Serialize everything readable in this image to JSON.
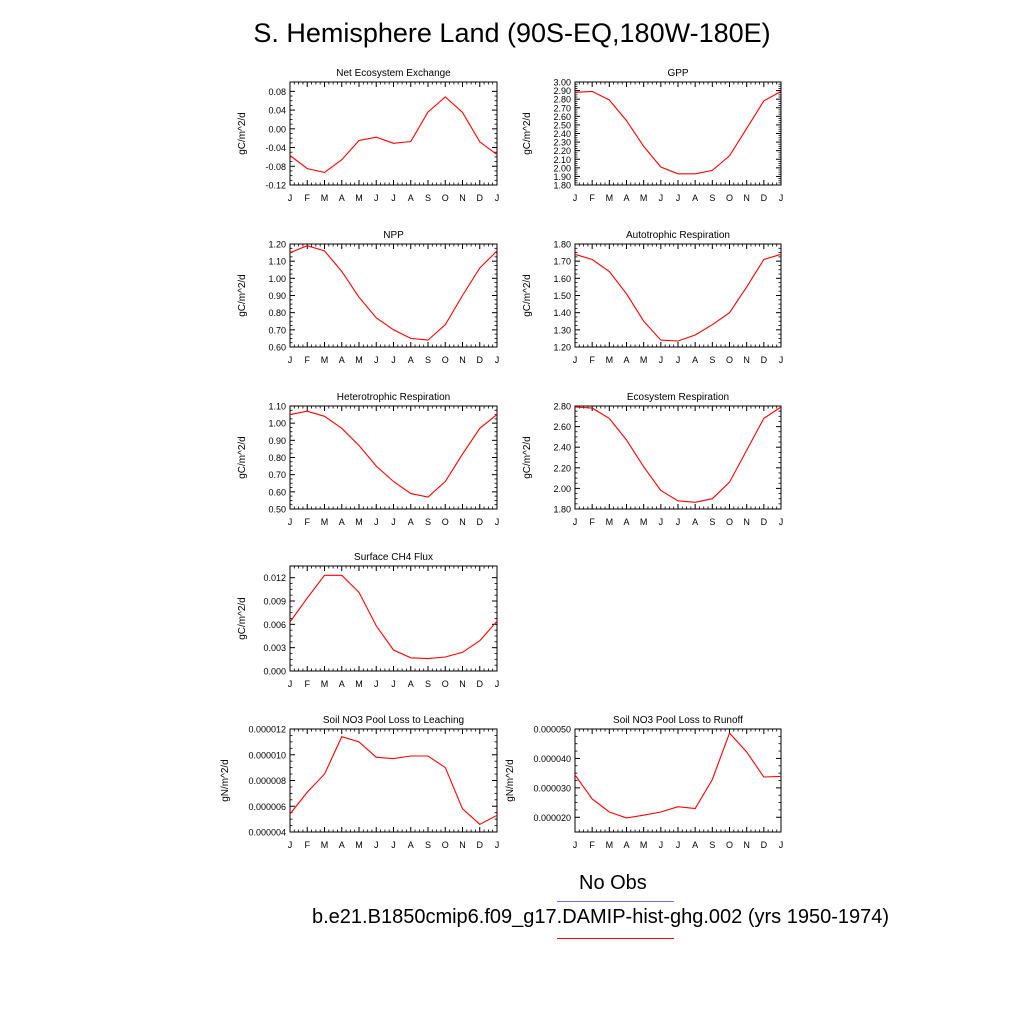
{
  "title": "S. Hemisphere Land (90S-EQ,180W-180E)",
  "legend": [
    {
      "label": "No Obs",
      "color": "#6f6ff7"
    },
    {
      "label": "b.e21.B1850cmip6.f09_g17.DAMIP-hist-ghg.002 (yrs 1950-1974)",
      "color": "#ff0000"
    }
  ],
  "chart_data": [
    {
      "type": "line",
      "title": "Net Ecosystem Exchange",
      "ylabel": "gC/m^2/d",
      "categories": [
        "J",
        "F",
        "M",
        "A",
        "M",
        "J",
        "J",
        "A",
        "S",
        "O",
        "N",
        "D",
        "J"
      ],
      "ylim": [
        -0.12,
        0.1
      ],
      "yticks": [
        "-0.12",
        "-0.08",
        "-0.04",
        "0.00",
        "0.04",
        "0.08"
      ],
      "yticks_values": [
        -0.12,
        -0.08,
        -0.04,
        0.0,
        0.04,
        0.08
      ],
      "series": [
        {
          "color": "#ff0000",
          "values": [
            -0.057,
            -0.085,
            -0.093,
            -0.066,
            -0.025,
            -0.018,
            -0.031,
            -0.027,
            0.036,
            0.068,
            0.035,
            -0.028,
            -0.055
          ]
        }
      ]
    },
    {
      "type": "line",
      "title": "GPP",
      "ylabel": "gC/m^2/d",
      "categories": [
        "J",
        "F",
        "M",
        "A",
        "M",
        "J",
        "J",
        "A",
        "S",
        "O",
        "N",
        "D",
        "J"
      ],
      "ylim": [
        1.8,
        3.0
      ],
      "yticks": [
        "1.80",
        "1.90",
        "2.00",
        "2.10",
        "2.20",
        "2.30",
        "2.40",
        "2.50",
        "2.60",
        "2.70",
        "2.80",
        "2.90",
        "3.00"
      ],
      "yticks_values": [
        1.8,
        1.9,
        2.0,
        2.1,
        2.2,
        2.3,
        2.4,
        2.5,
        2.6,
        2.7,
        2.8,
        2.9,
        3.0
      ],
      "series": [
        {
          "color": "#ff0000",
          "values": [
            2.88,
            2.89,
            2.79,
            2.55,
            2.25,
            2.01,
            1.93,
            1.93,
            1.97,
            2.14,
            2.46,
            2.78,
            2.89
          ]
        }
      ]
    },
    {
      "type": "line",
      "title": "NPP",
      "ylabel": "gC/m^2/d",
      "categories": [
        "J",
        "F",
        "M",
        "A",
        "M",
        "J",
        "J",
        "A",
        "S",
        "O",
        "N",
        "D",
        "J"
      ],
      "ylim": [
        0.6,
        1.2
      ],
      "yticks": [
        "0.60",
        "0.70",
        "0.80",
        "0.90",
        "1.00",
        "1.10",
        "1.20"
      ],
      "yticks_values": [
        0.6,
        0.7,
        0.8,
        0.9,
        1.0,
        1.1,
        1.2
      ],
      "series": [
        {
          "color": "#ff0000",
          "values": [
            1.15,
            1.19,
            1.16,
            1.04,
            0.89,
            0.77,
            0.7,
            0.65,
            0.64,
            0.73,
            0.9,
            1.06,
            1.16
          ]
        }
      ]
    },
    {
      "type": "line",
      "title": "Autotrophic Respiration",
      "ylabel": "gC/m^2/d",
      "categories": [
        "J",
        "F",
        "M",
        "A",
        "M",
        "J",
        "J",
        "A",
        "S",
        "O",
        "N",
        "D",
        "J"
      ],
      "ylim": [
        1.2,
        1.8
      ],
      "yticks": [
        "1.20",
        "1.30",
        "1.40",
        "1.50",
        "1.60",
        "1.70",
        "1.80"
      ],
      "yticks_values": [
        1.2,
        1.3,
        1.4,
        1.5,
        1.6,
        1.7,
        1.8
      ],
      "series": [
        {
          "color": "#ff0000",
          "values": [
            1.74,
            1.71,
            1.64,
            1.51,
            1.35,
            1.24,
            1.235,
            1.27,
            1.33,
            1.4,
            1.55,
            1.71,
            1.74
          ]
        }
      ]
    },
    {
      "type": "line",
      "title": "Heterotrophic Respiration",
      "ylabel": "gC/m^2/d",
      "categories": [
        "J",
        "F",
        "M",
        "A",
        "M",
        "J",
        "J",
        "A",
        "S",
        "O",
        "N",
        "D",
        "J"
      ],
      "ylim": [
        0.5,
        1.1
      ],
      "yticks": [
        "0.50",
        "0.60",
        "0.70",
        "0.80",
        "0.90",
        "1.00",
        "1.10"
      ],
      "yticks_values": [
        0.5,
        0.6,
        0.7,
        0.8,
        0.9,
        1.0,
        1.1
      ],
      "series": [
        {
          "color": "#ff0000",
          "values": [
            1.05,
            1.07,
            1.04,
            0.97,
            0.87,
            0.75,
            0.66,
            0.59,
            0.57,
            0.66,
            0.82,
            0.97,
            1.05
          ]
        }
      ]
    },
    {
      "type": "line",
      "title": "Ecosystem Respiration",
      "ylabel": "gC/m^2/d",
      "categories": [
        "J",
        "F",
        "M",
        "A",
        "M",
        "J",
        "J",
        "A",
        "S",
        "O",
        "N",
        "D",
        "J"
      ],
      "ylim": [
        1.8,
        2.8
      ],
      "yticks": [
        "1.80",
        "2.00",
        "2.20",
        "2.40",
        "2.60",
        "2.80"
      ],
      "yticks_values": [
        1.8,
        2.0,
        2.2,
        2.4,
        2.6,
        2.8
      ],
      "series": [
        {
          "color": "#ff0000",
          "values": [
            2.79,
            2.78,
            2.68,
            2.47,
            2.21,
            1.98,
            1.88,
            1.865,
            1.9,
            2.06,
            2.37,
            2.68,
            2.79
          ]
        }
      ]
    },
    {
      "type": "line",
      "title": "Surface CH4 Flux",
      "ylabel": "gC/m^2/d",
      "categories": [
        "J",
        "F",
        "M",
        "A",
        "M",
        "J",
        "J",
        "A",
        "S",
        "O",
        "N",
        "D",
        "J"
      ],
      "ylim": [
        0.0,
        0.0135
      ],
      "yticks": [
        "0.000",
        "0.003",
        "0.006",
        "0.009",
        "0.012"
      ],
      "yticks_values": [
        0.0,
        0.003,
        0.006,
        0.009,
        0.012
      ],
      "series": [
        {
          "color": "#ff0000",
          "values": [
            0.0063,
            0.0094,
            0.0123,
            0.0123,
            0.0101,
            0.0058,
            0.0027,
            0.0017,
            0.0016,
            0.0018,
            0.0024,
            0.0039,
            0.0064
          ]
        }
      ]
    },
    {
      "type": "line",
      "title": "Soil NO3 Pool Loss to Leaching",
      "ylabel": "gN/m^2/d",
      "categories": [
        "J",
        "F",
        "M",
        "A",
        "M",
        "J",
        "J",
        "A",
        "S",
        "O",
        "N",
        "D",
        "J"
      ],
      "ylim": [
        4e-06,
        1.2e-05
      ],
      "yticks": [
        "0.000004",
        "0.000006",
        "0.000008",
        "0.000010",
        "0.000012"
      ],
      "yticks_values": [
        4e-06,
        6e-06,
        8e-06,
        1e-05,
        1.2e-05
      ],
      "series": [
        {
          "color": "#ff0000",
          "values": [
            5.4e-06,
            7.1e-06,
            8.5e-06,
            1.14e-05,
            1.1e-05,
            9.8e-06,
            9.7e-06,
            9.9e-06,
            9.9e-06,
            9e-06,
            5.8e-06,
            4.6e-06,
            5.3e-06
          ]
        }
      ]
    },
    {
      "type": "line",
      "title": "Soil NO3 Pool Loss to Runoff",
      "ylabel": "gN/m^2/d",
      "categories": [
        "J",
        "F",
        "M",
        "A",
        "M",
        "J",
        "J",
        "A",
        "S",
        "O",
        "N",
        "D",
        "J"
      ],
      "ylim": [
        1.5e-05,
        5e-05
      ],
      "yticks": [
        "0.000020",
        "0.000030",
        "0.000040",
        "0.000050"
      ],
      "yticks_values": [
        2e-05,
        3e-05,
        4e-05,
        5e-05
      ],
      "series": [
        {
          "color": "#ff0000",
          "values": [
            3.44e-05,
            2.62e-05,
            2.18e-05,
            1.98e-05,
            2.07e-05,
            2.18e-05,
            2.36e-05,
            2.3e-05,
            3.28e-05,
            4.86e-05,
            4.22e-05,
            3.37e-05,
            3.39e-05
          ]
        }
      ]
    }
  ]
}
